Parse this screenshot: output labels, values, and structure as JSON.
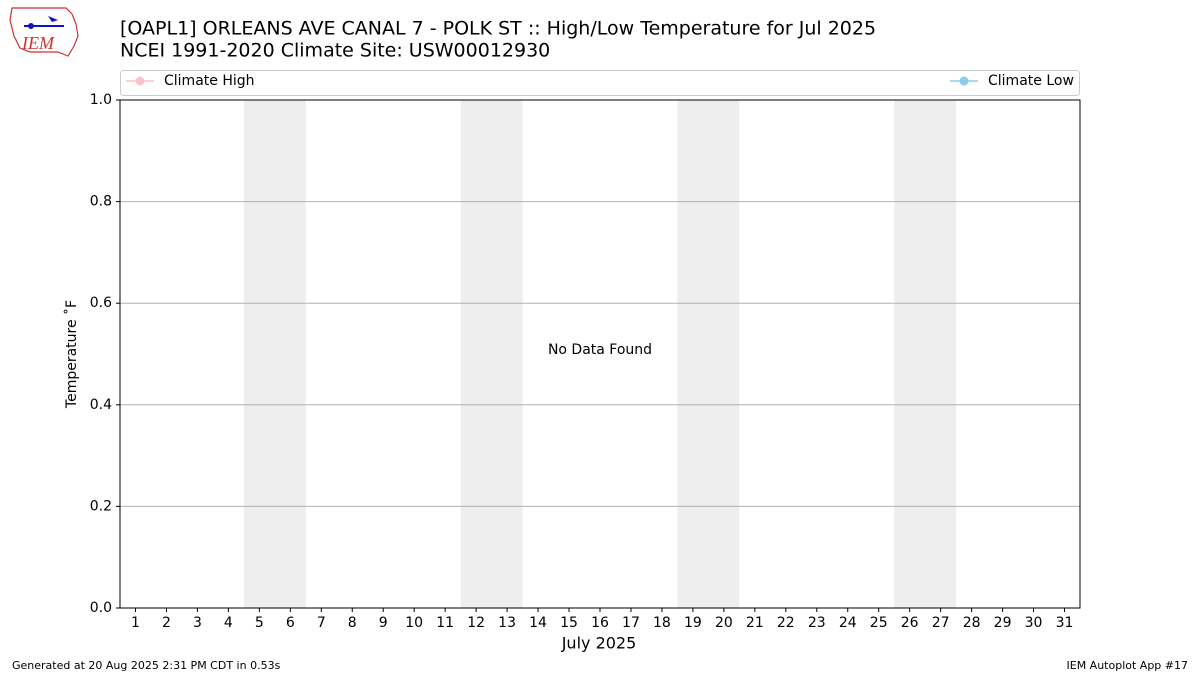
{
  "chart_data": {
    "type": "line",
    "logo": "IEM",
    "title": "[OAPL1] ORLEANS AVE CANAL 7 - POLK ST :: High/Low Temperature for Jul 2025",
    "subtitle": "NCEI 1991-2020 Climate Site: USW00012930",
    "xlabel": "July 2025",
    "ylabel": "Temperature ˚F",
    "annotation": "No Data Found",
    "footer_left": "Generated at 20 Aug 2025 2:31 PM CDT in 0.53s",
    "footer_right": "IEM Autoplot App #17",
    "x": [
      1,
      2,
      3,
      4,
      5,
      6,
      7,
      8,
      9,
      10,
      11,
      12,
      13,
      14,
      15,
      16,
      17,
      18,
      19,
      20,
      21,
      22,
      23,
      24,
      25,
      26,
      27,
      28,
      29,
      30,
      31
    ],
    "xlim": [
      0.5,
      31.5
    ],
    "xticks": [
      1,
      2,
      3,
      4,
      5,
      6,
      7,
      8,
      9,
      10,
      11,
      12,
      13,
      14,
      15,
      16,
      17,
      18,
      19,
      20,
      21,
      22,
      23,
      24,
      25,
      26,
      27,
      28,
      29,
      30,
      31
    ],
    "ylim": [
      0,
      1
    ],
    "yticks": [
      {
        "value": 0,
        "label": "0.0"
      },
      0.2,
      0.4,
      0.6,
      0.8,
      {
        "value": 1,
        "label": "1.0"
      }
    ],
    "grid": true,
    "weekend_bands": [
      [
        4.5,
        6.5
      ],
      [
        11.5,
        13.5
      ],
      [
        18.5,
        20.5
      ],
      [
        25.5,
        27.5
      ]
    ],
    "band_color": "#eeeeee",
    "series": [
      {
        "name": "Climate High",
        "color": "#ffc0cb",
        "values": [
          null,
          null,
          null,
          null,
          null,
          null,
          null,
          null,
          null,
          null,
          null,
          null,
          null,
          null,
          null,
          null,
          null,
          null,
          null,
          null,
          null,
          null,
          null,
          null,
          null,
          null,
          null,
          null,
          null,
          null,
          null
        ]
      },
      {
        "name": "Climate Low",
        "color": "#87ceeb",
        "values": [
          null,
          null,
          null,
          null,
          null,
          null,
          null,
          null,
          null,
          null,
          null,
          null,
          null,
          null,
          null,
          null,
          null,
          null,
          null,
          null,
          null,
          null,
          null,
          null,
          null,
          null,
          null,
          null,
          null,
          null,
          null
        ]
      }
    ]
  }
}
